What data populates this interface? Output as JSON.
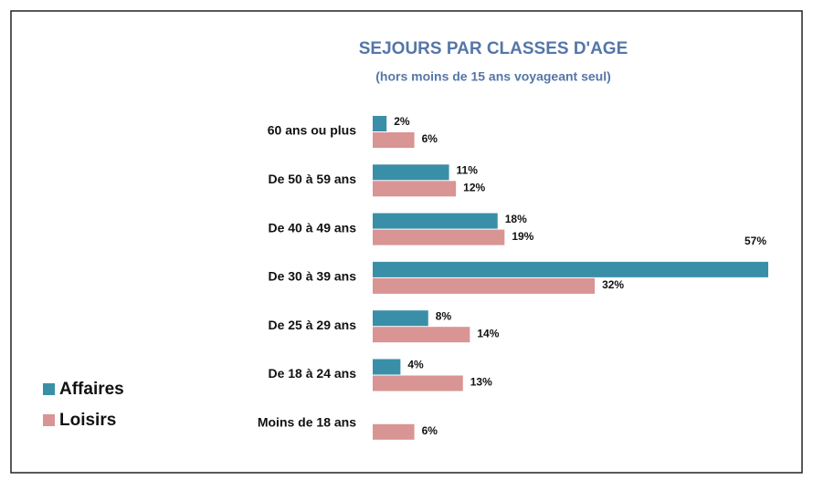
{
  "chart_data": {
    "type": "barh",
    "title": "SEJOURS PAR CLASSES D'AGE",
    "subtitle": "(hors moins de 15 ans voyageant seul)",
    "categories": [
      "60 ans ou plus",
      "De 50 à 59 ans",
      "De 40 à 49 ans",
      "De 30 à 39 ans",
      "De 25 à 29 ans",
      "De 18 à 24 ans",
      "Moins de 18 ans"
    ],
    "series": [
      {
        "name": "Affaires",
        "color": "#3a8fa8",
        "values": [
          2,
          11,
          18,
          57,
          8,
          4,
          null
        ],
        "value_labels": [
          "2%",
          "11%",
          "18%",
          "57%",
          "8%",
          "4%",
          null
        ]
      },
      {
        "name": "Loisirs",
        "color": "#d99494",
        "values": [
          6,
          12,
          19,
          32,
          14,
          13,
          6
        ],
        "value_labels": [
          "6%",
          "12%",
          "19%",
          "32%",
          "14%",
          "13%",
          "6%"
        ]
      }
    ]
  }
}
